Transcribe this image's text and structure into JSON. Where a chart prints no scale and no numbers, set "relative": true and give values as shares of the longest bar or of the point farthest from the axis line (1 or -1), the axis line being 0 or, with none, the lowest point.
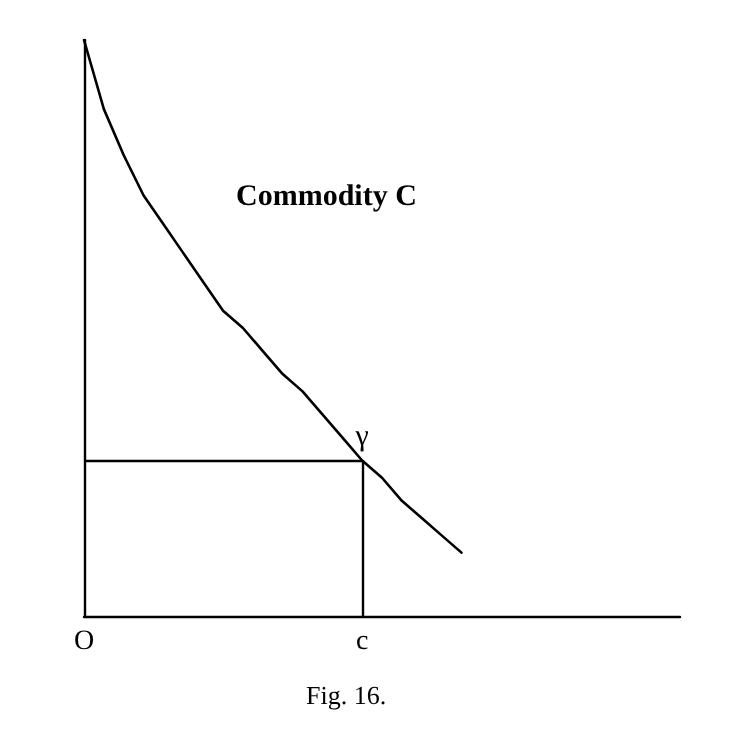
{
  "chart_data": {
    "type": "line",
    "title": "Commodity C",
    "relative": true,
    "categories": [
      "O",
      null,
      null,
      null,
      null,
      null,
      null,
      null,
      null,
      null,
      null,
      null,
      null,
      null,
      "c",
      null,
      null,
      null,
      null,
      null,
      null,
      null,
      null,
      null,
      null,
      null,
      null,
      null,
      null,
      null,
      null
    ],
    "series": [
      {
        "color": "#000000",
        "values": [
          1,
          0.88,
          0.8,
          0.73,
          0.68,
          0.63,
          0.58,
          0.53,
          0.5,
          0.46,
          0.42,
          0.39,
          0.35,
          0.31,
          0.27,
          0.24,
          0.2,
          0.17,
          0.14,
          0.11,
          null,
          null,
          null,
          null,
          null,
          null,
          null,
          null,
          null,
          null,
          null
        ]
      }
    ],
    "annotations": [
      {
        "text": "γ",
        "x": "c",
        "y": 0.27
      },
      "Fig. 16."
    ],
    "marker": "none",
    "line_style": "solid"
  }
}
